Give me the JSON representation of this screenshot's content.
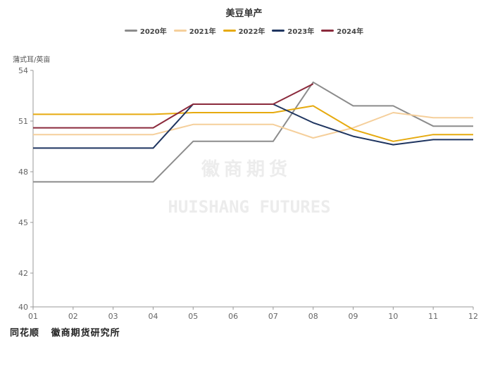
{
  "watermark": {
    "cn": "徽商期货",
    "en": "HUISHANG FUTURES"
  },
  "footer": {
    "source": "同花顺   徽商期货研究所"
  },
  "chart_data": {
    "type": "line",
    "title": "美豆单产",
    "ylabel": "蒲式耳/英亩",
    "xlabel": "",
    "categories": [
      "01",
      "02",
      "03",
      "04",
      "05",
      "06",
      "07",
      "08",
      "09",
      "10",
      "11",
      "12"
    ],
    "ylim": [
      40,
      54
    ],
    "yticks": [
      40,
      42,
      45,
      48,
      51,
      54
    ],
    "grid": false,
    "legend_position": "top",
    "series": [
      {
        "name": "2020年",
        "color": "#8c8c8c",
        "values": [
          47.4,
          47.4,
          47.4,
          47.4,
          49.8,
          49.8,
          49.8,
          53.3,
          51.9,
          51.9,
          50.7,
          50.7
        ]
      },
      {
        "name": "2021年",
        "color": "#f5cf9b",
        "values": [
          50.2,
          50.2,
          50.2,
          50.2,
          50.8,
          50.8,
          50.8,
          50.0,
          50.6,
          51.5,
          51.2,
          51.2
        ]
      },
      {
        "name": "2022年",
        "color": "#e6aa0f",
        "values": [
          51.4,
          51.4,
          51.4,
          51.4,
          51.5,
          51.5,
          51.5,
          51.9,
          50.5,
          49.8,
          50.2,
          50.2
        ]
      },
      {
        "name": "2023年",
        "color": "#1f3560",
        "values": [
          49.4,
          49.4,
          49.4,
          49.4,
          52.0,
          52.0,
          52.0,
          50.9,
          50.1,
          49.6,
          49.9,
          49.9
        ]
      },
      {
        "name": "2024年",
        "color": "#8b2a3c",
        "values": [
          50.6,
          50.6,
          50.6,
          50.6,
          52.0,
          52.0,
          52.0,
          53.2,
          null,
          null,
          null,
          null
        ]
      }
    ]
  }
}
